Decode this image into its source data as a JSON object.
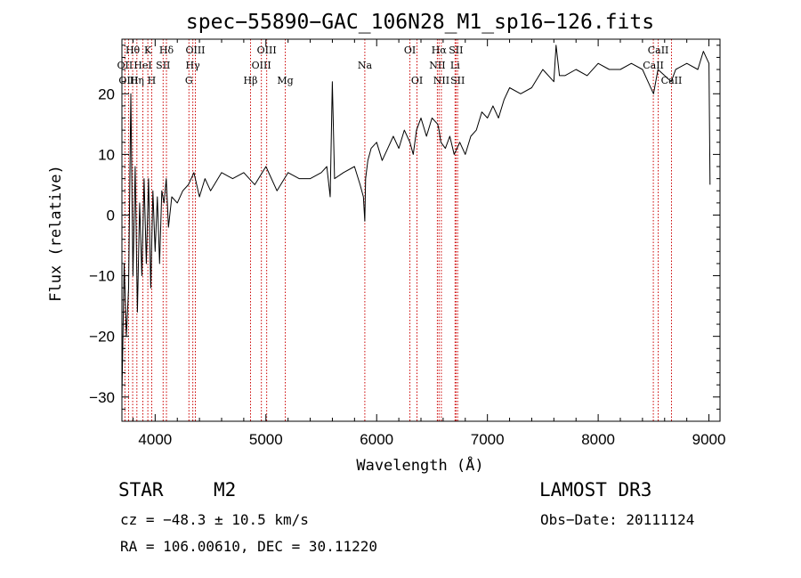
{
  "chart_data": {
    "type": "line",
    "title": "spec−55890−GAC_106N28_M1_sp16−126.fits",
    "xlabel": "Wavelength (Å)",
    "ylabel": "Flux (relative)",
    "xlim": [
      3700,
      9100
    ],
    "ylim": [
      -34,
      29
    ],
    "x_ticks": [
      4000,
      5000,
      6000,
      7000,
      8000,
      9000
    ],
    "y_ticks": [
      -30,
      -20,
      -10,
      0,
      10,
      20
    ],
    "y_tick_labels": [
      "−30",
      "−20",
      "−10",
      "0",
      "10",
      "20"
    ],
    "x_tick_labels": [
      "4000",
      "5000",
      "6000",
      "7000",
      "8000",
      "9000"
    ],
    "spectrum": {
      "x": [
        3700,
        3720,
        3740,
        3760,
        3780,
        3800,
        3820,
        3840,
        3860,
        3880,
        3900,
        3920,
        3940,
        3960,
        3980,
        4000,
        4020,
        4040,
        4060,
        4080,
        4100,
        4120,
        4150,
        4200,
        4250,
        4300,
        4350,
        4400,
        4450,
        4500,
        4600,
        4700,
        4800,
        4900,
        5000,
        5100,
        5200,
        5300,
        5400,
        5500,
        5550,
        5580,
        5600,
        5620,
        5700,
        5800,
        5850,
        5880,
        5893,
        5900,
        5920,
        5950,
        6000,
        6050,
        6100,
        6150,
        6200,
        6250,
        6300,
        6330,
        6360,
        6400,
        6450,
        6500,
        6550,
        6563,
        6580,
        6620,
        6660,
        6700,
        6750,
        6800,
        6850,
        6900,
        6950,
        7000,
        7050,
        7100,
        7150,
        7200,
        7300,
        7400,
        7500,
        7600,
        7620,
        7650,
        7700,
        7800,
        7900,
        8000,
        8100,
        8200,
        8300,
        8400,
        8450,
        8500,
        8540,
        8600,
        8660,
        8700,
        8800,
        8900,
        8950,
        9000,
        9010
      ],
      "y": [
        -30,
        -8,
        -20,
        -12,
        20,
        -10,
        8,
        -16,
        2,
        -10,
        6,
        -8,
        6,
        -12,
        4,
        -6,
        3,
        -8,
        4,
        2,
        6,
        -2,
        3,
        2,
        4,
        5,
        7,
        3,
        6,
        4,
        7,
        6,
        7,
        5,
        8,
        4,
        7,
        6,
        6,
        7,
        8,
        3,
        22,
        6,
        7,
        8,
        5,
        3,
        -1,
        6,
        9,
        11,
        12,
        9,
        11,
        13,
        11,
        14,
        12,
        10,
        14,
        16,
        13,
        16,
        15,
        14,
        12,
        11,
        13,
        10,
        12,
        10,
        13,
        14,
        17,
        16,
        18,
        16,
        19,
        21,
        20,
        21,
        24,
        22,
        28,
        23,
        23,
        24,
        23,
        25,
        24,
        24,
        25,
        24,
        22,
        20,
        24,
        23,
        22,
        24,
        25,
        24,
        27,
        25,
        5
      ]
    },
    "spectral_lines": [
      {
        "label": "Hθ",
        "wavelength": 3797,
        "row": 1
      },
      {
        "label": "OII",
        "wavelength": 3727,
        "row": 2
      },
      {
        "label": "OIII",
        "wavelength": 3760,
        "row": 3
      },
      {
        "label": "K",
        "wavelength": 3934,
        "row": 1
      },
      {
        "label": "HeI",
        "wavelength": 3889,
        "row": 2
      },
      {
        "label": "Hη",
        "wavelength": 3835,
        "row": 3
      },
      {
        "label": "H",
        "wavelength": 3969,
        "row": 3
      },
      {
        "label": "Hδ",
        "wavelength": 4102,
        "row": 1
      },
      {
        "label": "SII",
        "wavelength": 4072,
        "row": 2
      },
      {
        "label": "OIII",
        "wavelength": 4363,
        "row": 1
      },
      {
        "label": "Hγ",
        "wavelength": 4340,
        "row": 2
      },
      {
        "label": "G",
        "wavelength": 4305,
        "row": 3
      },
      {
        "label": "OIII",
        "wavelength": 5007,
        "row": 1
      },
      {
        "label": "OIII",
        "wavelength": 4959,
        "row": 2
      },
      {
        "label": "Hβ",
        "wavelength": 4861,
        "row": 3
      },
      {
        "label": "Mg",
        "wavelength": 5175,
        "row": 3
      },
      {
        "label": "Na",
        "wavelength": 5893,
        "row": 2
      },
      {
        "label": "OI",
        "wavelength": 6300,
        "row": 1
      },
      {
        "label": "OI",
        "wavelength": 6364,
        "row": 3
      },
      {
        "label": "Hα",
        "wavelength": 6563,
        "row": 1
      },
      {
        "label": "SII",
        "wavelength": 6716,
        "row": 1
      },
      {
        "label": "NII",
        "wavelength": 6548,
        "row": 2
      },
      {
        "label": "Li",
        "wavelength": 6708,
        "row": 2
      },
      {
        "label": "NII",
        "wavelength": 6584,
        "row": 3
      },
      {
        "label": "SII",
        "wavelength": 6731,
        "row": 3
      },
      {
        "label": "CaII",
        "wavelength": 8542,
        "row": 1
      },
      {
        "label": "CaII",
        "wavelength": 8498,
        "row": 2
      },
      {
        "label": "CaII",
        "wavelength": 8662,
        "row": 3
      }
    ]
  },
  "info": {
    "object_class": "STAR",
    "subclass": "M2",
    "survey": "LAMOST DR3",
    "redshift": "cz = −48.3 ± 10.5 km/s",
    "obs_date": "Obs−Date: 20111124",
    "coords": "RA = 106.00610, DEC =  30.11220"
  },
  "colors": {
    "line_markers": "#cc0000",
    "spectrum": "#000000",
    "axes": "#000000"
  }
}
